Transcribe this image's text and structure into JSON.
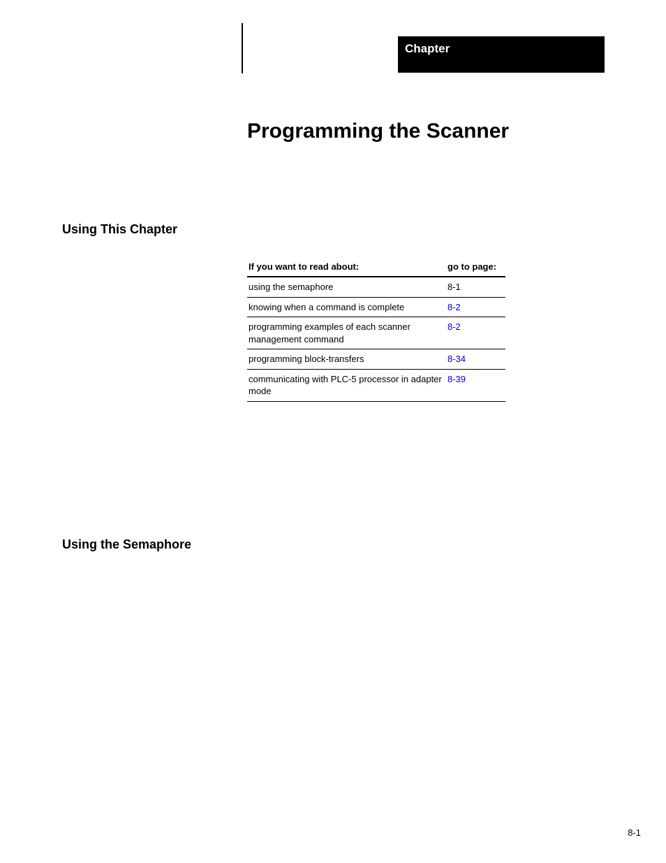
{
  "header": {
    "chapter_label": "Chapter"
  },
  "title": "Programming the Scanner",
  "sections": {
    "using_this_chapter": "Using This Chapter",
    "using_the_semaphore": "Using the Semaphore"
  },
  "toc": {
    "header_topic": "If you want to read about:",
    "header_page": "go to page:",
    "rows": [
      {
        "topic": "using the semaphore",
        "page": "8-1",
        "is_link": false
      },
      {
        "topic": "knowing when a command is complete",
        "page": "8-2",
        "is_link": true
      },
      {
        "topic": "programming examples of each scanner management command",
        "page": "8-2",
        "is_link": true
      },
      {
        "topic": "programming block-transfers",
        "page": "8-34",
        "is_link": true
      },
      {
        "topic": "communicating with PLC-5 processor in adapter mode",
        "page": "8-39",
        "is_link": true
      }
    ]
  },
  "footer": {
    "page_number": "8-1"
  },
  "colors": {
    "link": "#0000cc",
    "text": "#000000",
    "background": "#ffffff",
    "banner_bg": "#000000",
    "banner_text": "#ffffff"
  },
  "typography": {
    "title_fontsize": 30,
    "section_fontsize": 18,
    "table_fontsize": 13,
    "banner_fontsize": 17,
    "footer_fontsize": 13
  }
}
